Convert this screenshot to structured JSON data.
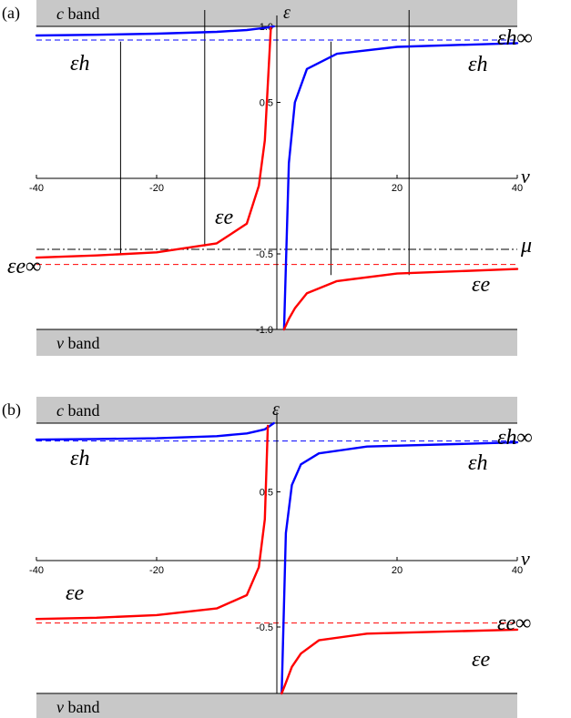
{
  "chart_data": [
    {
      "type": "line",
      "panel_label": "(a)",
      "xlabel": "v",
      "ylabel": "ε",
      "xlim": [
        -40,
        40
      ],
      "ylim": [
        -1,
        1
      ],
      "x_ticks": [
        "-40",
        "-20",
        "20",
        "40"
      ],
      "y_ticks": [
        "1.0",
        "0.5",
        "-0.5",
        "-1.0"
      ],
      "bands": {
        "upper": "c",
        "lower": "v",
        "word": "band"
      },
      "series": [
        {
          "name": "εh",
          "color": "#0000ff",
          "x": [
            -40,
            -30,
            -20,
            -10,
            -5,
            -2,
            -0.5
          ],
          "y": [
            0.94,
            0.945,
            0.952,
            0.964,
            0.976,
            0.99,
            1.0
          ]
        },
        {
          "name": "εh",
          "color": "#0000ff",
          "x": [
            1.2,
            2,
            3,
            5,
            10,
            20,
            40
          ],
          "y": [
            -1.0,
            0.1,
            0.5,
            0.72,
            0.82,
            0.865,
            0.89
          ]
        },
        {
          "name": "εe",
          "color": "#ff0000",
          "x": [
            -40,
            -30,
            -20,
            -10,
            -5,
            -3,
            -2,
            -1
          ],
          "y": [
            -0.525,
            -0.51,
            -0.49,
            -0.43,
            -0.3,
            -0.05,
            0.25,
            0.99
          ]
        },
        {
          "name": "εe",
          "color": "#ff0000",
          "x": [
            1.2,
            2,
            3,
            5,
            10,
            20,
            40
          ],
          "y": [
            -1.0,
            -0.93,
            -0.86,
            -0.76,
            -0.68,
            -0.63,
            -0.6
          ]
        }
      ],
      "reference_lines": [
        {
          "label": "εh∞",
          "y": 0.91,
          "color": "#0000ff",
          "style": "dashed"
        },
        {
          "label": "εe∞",
          "y": -0.57,
          "color": "#ff0000",
          "style": "dashed"
        },
        {
          "label": "μ",
          "y": -0.47,
          "color": "#000000",
          "style": "dash-dot"
        }
      ],
      "vertical_lines_x": [
        -26,
        -12,
        9,
        22
      ],
      "annotations": [
        "εh",
        "εh",
        "εe",
        "εe",
        "εh∞",
        "εe∞",
        "μ"
      ]
    },
    {
      "type": "line",
      "panel_label": "(b)",
      "xlabel": "v",
      "ylabel": "ε",
      "xlim": [
        -40,
        40
      ],
      "ylim": [
        -1,
        1
      ],
      "x_ticks": [
        "-40",
        "-20",
        "20",
        "40"
      ],
      "y_ticks": [
        "0.5",
        "-0.5"
      ],
      "bands": {
        "upper": "c",
        "lower": "v",
        "word": "band"
      },
      "series": [
        {
          "name": "εh",
          "color": "#0000ff",
          "x": [
            -40,
            -30,
            -20,
            -10,
            -5,
            -2,
            -0.5
          ],
          "y": [
            0.88,
            0.885,
            0.89,
            0.905,
            0.925,
            0.955,
            1.0
          ]
        },
        {
          "name": "εh",
          "color": "#0000ff",
          "x": [
            0.8,
            1.5,
            2.5,
            4,
            7,
            15,
            40
          ],
          "y": [
            -1.0,
            0.2,
            0.55,
            0.7,
            0.78,
            0.83,
            0.86
          ]
        },
        {
          "name": "εe",
          "color": "#ff0000",
          "x": [
            -40,
            -30,
            -20,
            -10,
            -5,
            -3,
            -2,
            -1.5
          ],
          "y": [
            -0.44,
            -0.43,
            -0.41,
            -0.36,
            -0.26,
            -0.05,
            0.3,
            0.98
          ]
        },
        {
          "name": "εe",
          "color": "#ff0000",
          "x": [
            0.8,
            1.5,
            2.5,
            4,
            7,
            15,
            40
          ],
          "y": [
            -1.0,
            -0.92,
            -0.8,
            -0.7,
            -0.6,
            -0.55,
            -0.52
          ]
        }
      ],
      "reference_lines": [
        {
          "label": "εh∞",
          "y": 0.87,
          "color": "#0000ff",
          "style": "dashed"
        },
        {
          "label": "εe∞",
          "y": -0.47,
          "color": "#ff0000",
          "style": "dashed"
        }
      ],
      "annotations": [
        "εh",
        "εh",
        "εe",
        "εe",
        "εh∞",
        "εe∞"
      ]
    }
  ]
}
